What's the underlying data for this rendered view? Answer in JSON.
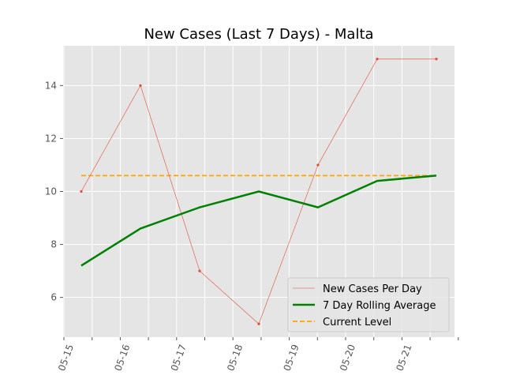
{
  "chart_data": {
    "type": "line",
    "title": "New Cases (Last 7 Days) - Malta",
    "xlabel": "",
    "ylabel": "",
    "x": [
      "05-15",
      "05-16",
      "05-17",
      "05-18",
      "05-19",
      "05-20",
      "05-21"
    ],
    "xticks": [
      "05-15",
      "05-16",
      "05-17",
      "05-18",
      "05-19",
      "05-20",
      "05-21"
    ],
    "yticks": [
      6,
      8,
      10,
      12,
      14
    ],
    "ylim": [
      4.5,
      15.5
    ],
    "grid": true,
    "legend_position": "lower-right",
    "series": [
      {
        "name": "New Cases Per Day",
        "values": [
          10,
          14,
          7,
          5,
          11,
          15,
          15
        ],
        "color": "#e24a33",
        "style": "thin-line-with-markers"
      },
      {
        "name": "7 Day Rolling Average",
        "values": [
          7.2,
          8.6,
          9.4,
          10.0,
          9.4,
          10.4,
          10.6
        ],
        "color": "#008000",
        "style": "thick-line"
      },
      {
        "name": "Current Level",
        "values": [
          10.6,
          10.6,
          10.6,
          10.6,
          10.6,
          10.6,
          10.6
        ],
        "color": "#ffa500",
        "style": "dashed-line"
      }
    ]
  }
}
